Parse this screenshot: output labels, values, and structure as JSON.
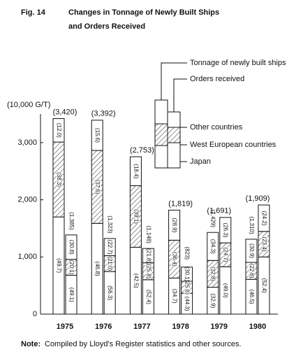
{
  "chart_data": {
    "type": "stacked_grouped_bar",
    "figure_label": "Fig. 14",
    "title_lines": [
      "Changes in Tonnage of Newly Built Ships",
      "and Orders Received"
    ],
    "y_unit_label": "(10,000 G/T)",
    "categories": [
      "1975",
      "1976",
      "1977",
      "1978",
      "1979",
      "1980"
    ],
    "ylim": [
      0,
      3500
    ],
    "yticks": [
      0,
      {
        "value": 1000,
        "label": "1,000"
      },
      {
        "value": 2000,
        "label": "2,000"
      },
      {
        "value": 3000,
        "label": "3,000"
      }
    ],
    "grid": false,
    "series": [
      {
        "name": "Tonnage of newly built ships",
        "totals": [
          3420,
          3392,
          2753,
          1819,
          1429,
          1310
        ],
        "total_labels": [
          "(3,420)",
          "(3,392)",
          "(2,753)",
          "(1,819)",
          "(1,429)",
          "(1,310)"
        ],
        "components": [
          {
            "name": "Japan",
            "pattern": "none",
            "values": [
              49.7,
              46.8,
              42.5,
              34.7,
              32.9,
              46.5
            ],
            "value_labels": [
              "(49.7)",
              "(46.8)",
              "(42.5)",
              "(34.7)",
              "(32.9)",
              "(46.5)"
            ]
          },
          {
            "name": "West European countries",
            "pattern": "hatch",
            "values": [
              38.3,
              37.6,
              39.1,
              36.4,
              32.8,
              22.6
            ],
            "value_labels": [
              "(38.3)",
              "(37.6)",
              "(39.1)",
              "(36.4)",
              "(32.8)",
              "(22.6)"
            ]
          },
          {
            "name": "Other countries",
            "pattern": "none",
            "values": [
              12.0,
              15.6,
              18.4,
              28.9,
              34.3,
              30.9
            ],
            "value_labels": [
              "(12.0)",
              "(15.6)",
              "(18.4)",
              "(28.9)",
              "(34.3)",
              "(30.9)"
            ]
          }
        ]
      },
      {
        "name": "Orders received",
        "totals": [
          1385,
          1323,
          1148,
          823,
          1691,
          1909
        ],
        "total_labels": [
          "(1,385)",
          "(1,323)",
          "(1,148)",
          "(823)",
          "(1,691)",
          "(1,909)"
        ],
        "components": [
          {
            "name": "Japan",
            "pattern": "none",
            "values": [
              49.1,
              56.3,
              52.4,
              44.3,
              49.0,
              52.4
            ],
            "value_labels": [
              "(49.1)",
              "(56.3)",
              "(52.4)",
              "(44.3)",
              "(49.0)",
              "(52.4)"
            ]
          },
          {
            "name": "West European countries",
            "pattern": "hatch",
            "values": [
              20.1,
              21.0,
              25.8,
              25.6,
              24.7,
              23.4
            ],
            "value_labels": [
              "(20.1)",
              "(21.0)",
              "(25.8)",
              "(25.6)",
              "(24.7)",
              "(23.4)"
            ]
          },
          {
            "name": "Other countries",
            "pattern": "none",
            "values": [
              30.8,
              22.7,
              21.8,
              30.1,
              26.3,
              24.2
            ],
            "value_labels": [
              "(30.8)",
              "(22.7)",
              "(21.8)",
              "(30.1)",
              "(26.3)",
              "(24.2)"
            ]
          }
        ]
      }
    ],
    "note_label": "Note:",
    "note": "Compiled by Lloyd's Register statistics and other sources."
  }
}
